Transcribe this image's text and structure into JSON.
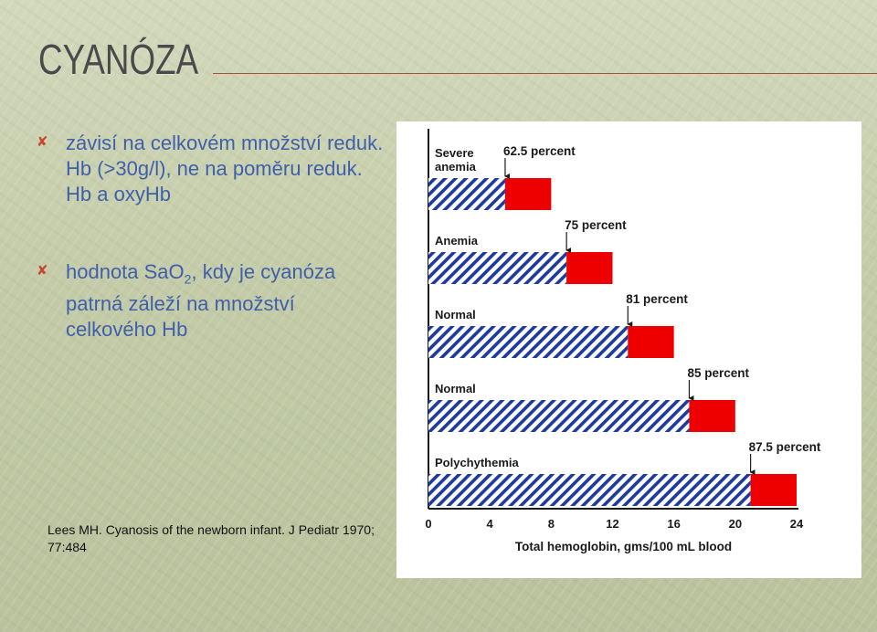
{
  "slide": {
    "title": "CYANÓZA",
    "bullets": [
      {
        "text": "závisí na  celkovém množství reduk. Hb (>30g/l), ne na poměru reduk. Hb a oxyHb"
      },
      {
        "text_before": "hodnota SaO",
        "subscript": "2",
        "text_after": ", kdy je cyanóza patrná záleží na množství celkového Hb"
      }
    ],
    "citation": "Lees MH. Cyanosis of the newborn infant. J Pediatr 1970; 77:484",
    "colors": {
      "title": "#4a4a4a",
      "bullet_text": "#3f5fa9",
      "bullet_icon": "#c9472e",
      "title_rule": "#b44a3a",
      "reduced_bar": "#ee0000",
      "hatched_bar": "#1e3a9e"
    },
    "bullet_icon_name": "x-bullet-icon"
  },
  "chart_data": {
    "type": "bar",
    "orientation": "horizontal",
    "stacked": true,
    "categories": [
      "Severe anemia",
      "Anemia",
      "Normal",
      "Normal",
      "Polychythemia"
    ],
    "category_labels": [
      [
        "Severe",
        "anemia"
      ],
      [
        "Anemia"
      ],
      [
        "Normal"
      ],
      [
        "Normal"
      ],
      [
        "Polychythemia"
      ]
    ],
    "series": [
      {
        "values": [
          5,
          9,
          13,
          17,
          21
        ],
        "style": "hatched"
      },
      {
        "values": [
          3,
          3,
          3,
          3,
          3
        ],
        "style": "solid"
      }
    ],
    "annotations": [
      "62.5 percent",
      "75 percent",
      "81 percent",
      "85 percent",
      "87.5 percent"
    ],
    "xlabel": "Total hemoglobin, gms/100 mL blood",
    "xticks": [
      0,
      4,
      8,
      12,
      16,
      20,
      24
    ],
    "xlim": [
      0,
      24
    ],
    "grid": false,
    "legend": "none"
  }
}
